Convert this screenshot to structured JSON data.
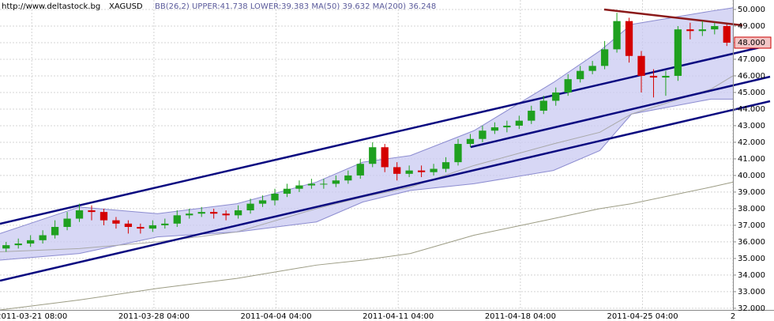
{
  "chart_data": {
    "type": "candlestick",
    "source": "http://www.deltastock.bg",
    "symbol": "XAGUSD",
    "subtitle": "BB(26,2) UPPER:41.738 LOWER:39.383 MA(50) 39.632 MA(200) 36.248",
    "open": [
      35.6,
      35.8,
      35.9,
      36.1,
      36.4,
      36.9,
      37.4,
      37.9,
      37.8,
      37.3,
      37.1,
      36.9,
      36.8,
      37.0,
      37.1,
      37.6,
      37.7,
      37.8,
      37.7,
      37.6,
      37.9,
      38.3,
      38.5,
      38.9,
      39.2,
      39.4,
      39.5,
      39.5,
      39.7,
      40.0,
      40.7,
      41.7,
      40.5,
      40.1,
      40.3,
      40.2,
      40.4,
      40.8,
      41.9,
      42.2,
      42.7,
      42.9,
      43.0,
      43.3,
      43.9,
      44.5,
      45.0,
      45.8,
      46.3,
      46.6,
      47.6,
      49.3,
      47.2,
      46.0,
      45.9,
      46.0,
      48.8,
      48.7,
      48.8,
      49.0
    ],
    "high": [
      36.0,
      36.2,
      36.4,
      36.7,
      37.3,
      37.8,
      38.3,
      38.2,
      38.0,
      37.5,
      37.3,
      37.1,
      37.3,
      37.4,
      37.9,
      38.0,
      38.1,
      38.0,
      37.9,
      38.2,
      38.6,
      38.8,
      39.2,
      39.5,
      39.7,
      39.8,
      39.8,
      40.0,
      40.3,
      41.0,
      42.0,
      41.9,
      40.8,
      40.6,
      40.6,
      40.7,
      41.1,
      42.2,
      42.5,
      43.0,
      43.2,
      43.3,
      43.6,
      44.2,
      44.8,
      45.3,
      46.1,
      46.6,
      46.9,
      48.1,
      49.8,
      49.5,
      47.5,
      46.4,
      46.3,
      49.0,
      49.2,
      49.3,
      49.2,
      49.1
    ],
    "low": [
      35.4,
      35.6,
      35.7,
      35.9,
      36.2,
      36.7,
      37.2,
      37.3,
      37.0,
      36.8,
      36.5,
      36.5,
      36.6,
      36.8,
      36.9,
      37.4,
      37.5,
      37.4,
      37.3,
      37.4,
      37.7,
      38.1,
      38.2,
      38.7,
      39.0,
      39.2,
      39.2,
      39.3,
      39.5,
      39.8,
      40.5,
      40.2,
      39.7,
      39.9,
      39.9,
      40.0,
      40.2,
      40.6,
      41.7,
      42.0,
      42.5,
      42.6,
      42.8,
      43.1,
      43.7,
      44.2,
      44.8,
      45.6,
      46.1,
      46.4,
      47.4,
      46.8,
      45.0,
      44.7,
      44.8,
      45.7,
      48.2,
      48.4,
      48.5,
      47.8
    ],
    "close": [
      35.8,
      35.9,
      36.1,
      36.4,
      36.9,
      37.4,
      37.9,
      37.8,
      37.3,
      37.1,
      36.9,
      36.8,
      37.0,
      37.1,
      37.6,
      37.7,
      37.8,
      37.7,
      37.6,
      37.9,
      38.3,
      38.5,
      38.9,
      39.2,
      39.4,
      39.5,
      39.5,
      39.7,
      40.0,
      40.7,
      41.7,
      40.5,
      40.1,
      40.3,
      40.2,
      40.4,
      40.8,
      41.9,
      42.2,
      42.7,
      42.9,
      43.0,
      43.3,
      43.9,
      44.5,
      45.0,
      45.8,
      46.3,
      46.6,
      47.6,
      49.3,
      47.2,
      46.0,
      45.9,
      46.0,
      48.8,
      48.7,
      48.8,
      49.0,
      48.0
    ],
    "up_color": "#1fa01f",
    "down_color": "#d40000",
    "overlay_x": [
      0,
      6.5,
      12.9,
      19.4,
      25.9,
      29.7,
      33.6,
      38.8,
      45.3,
      49.1,
      51.7,
      58.2,
      60
    ],
    "bb_upper": [
      36.5,
      38.1,
      37.7,
      38.3,
      39.6,
      40.8,
      41.2,
      42.7,
      45.6,
      47.5,
      49.1,
      49.9,
      50.1
    ],
    "bb_lower": [
      34.9,
      35.3,
      36.3,
      36.6,
      37.2,
      38.4,
      39.1,
      39.5,
      40.3,
      41.5,
      43.7,
      44.6,
      44.6
    ],
    "ma50": [
      35.4,
      35.6,
      36.0,
      36.6,
      38.0,
      38.7,
      39.3,
      40.6,
      41.9,
      42.6,
      43.7,
      45.2,
      46.0
    ],
    "ma200": [
      31.9,
      32.5,
      33.2,
      33.8,
      34.6,
      34.9,
      35.3,
      36.4,
      37.4,
      38.0,
      38.3,
      39.3,
      39.6
    ],
    "band_color": "#c9c9f2",
    "band_edge_color": "#8c8cd0",
    "ma50_color": "#a8a8a8",
    "ma200_color": "#9c9c84",
    "last_price": {
      "value": 48,
      "label": "48.000"
    },
    "xlim": [
      0,
      60
    ],
    "xticks": [
      {
        "value": 2.6,
        "label": "2011-03-21 08:00"
      },
      {
        "value": 12.6,
        "label": "2011-03-28 04:00"
      },
      {
        "value": 22.6,
        "label": "2011-04-04 04:00"
      },
      {
        "value": 32.6,
        "label": "2011-04-11 04:00"
      },
      {
        "value": 42.6,
        "label": "2011-04-18 04:00"
      },
      {
        "value": 52.6,
        "label": "2011-04-25 04:00"
      },
      {
        "value": 60,
        "label": "2"
      }
    ],
    "ylim": [
      31.9,
      50.57
    ],
    "yticks": [
      {
        "value": 32,
        "label": "32.000"
      },
      {
        "value": 33,
        "label": "33.000"
      },
      {
        "value": 34,
        "label": "34.000"
      },
      {
        "value": 35,
        "label": "35.000"
      },
      {
        "value": 36,
        "label": "36.000"
      },
      {
        "value": 37,
        "label": "37.000"
      },
      {
        "value": 38,
        "label": "38.000"
      },
      {
        "value": 39,
        "label": "39.000"
      },
      {
        "value": 40,
        "label": "40.000"
      },
      {
        "value": 41,
        "label": "41.000"
      },
      {
        "value": 42,
        "label": "42.000"
      },
      {
        "value": 43,
        "label": "43.000"
      },
      {
        "value": 44,
        "label": "44.000"
      },
      {
        "value": 45,
        "label": "45.000"
      },
      {
        "value": 46,
        "label": "46.000"
      },
      {
        "value": 47,
        "label": "47.000"
      },
      {
        "value": 48,
        "label": "48.000"
      },
      {
        "value": 49,
        "label": "49.000"
      },
      {
        "value": 50,
        "label": "50.000"
      }
    ],
    "grid": true
  }
}
